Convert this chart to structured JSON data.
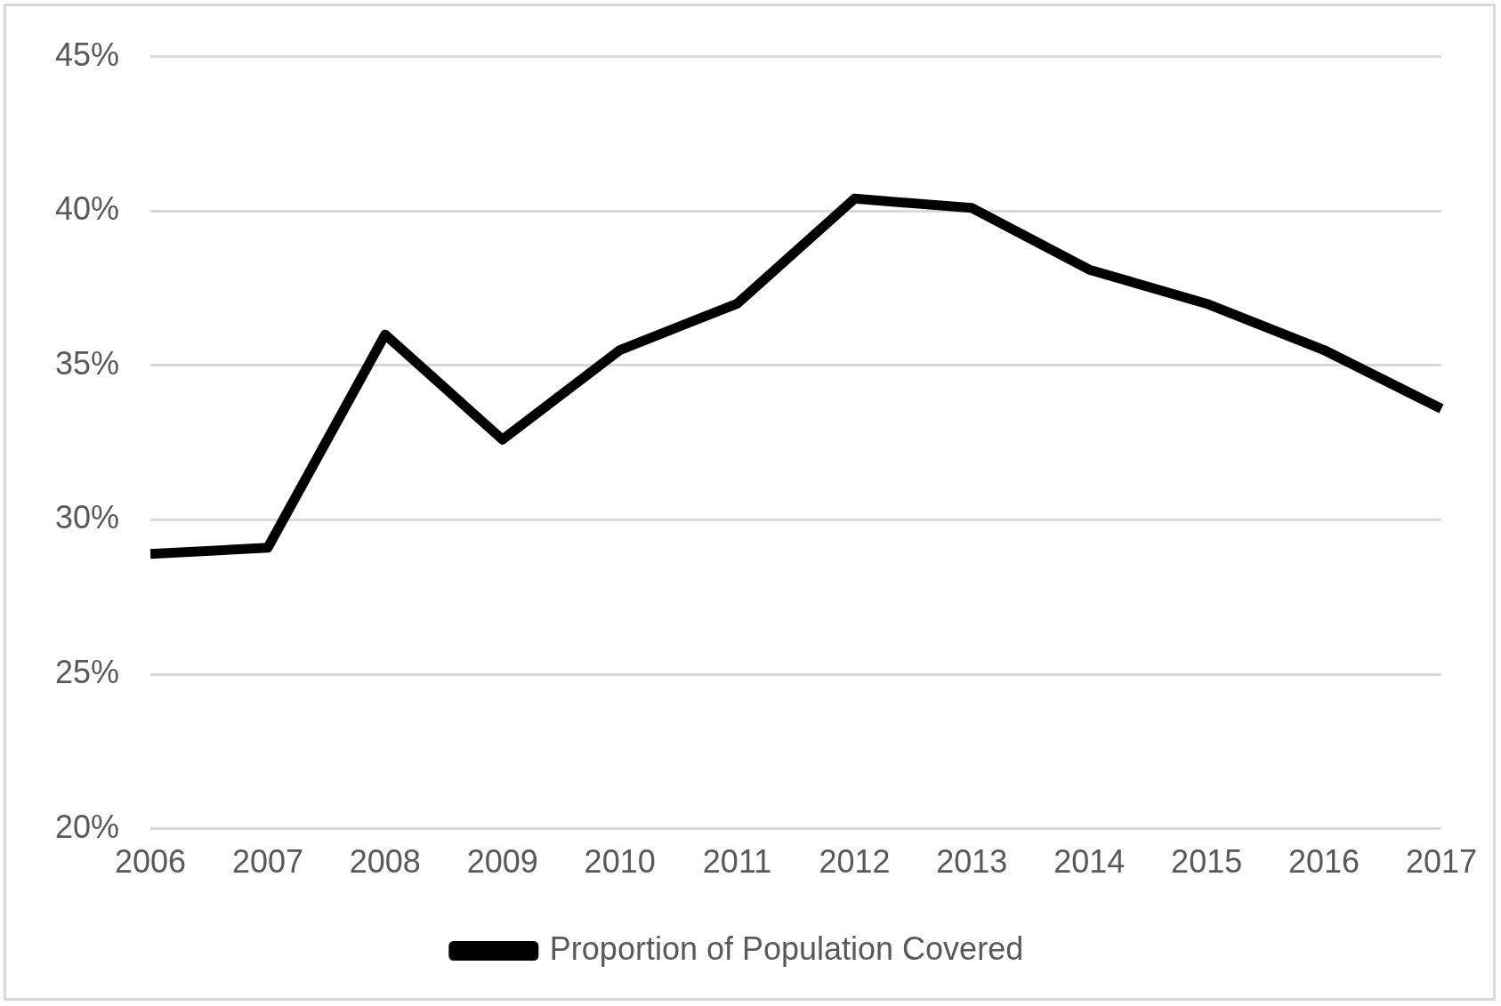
{
  "chart_data": {
    "type": "line",
    "categories": [
      "2006",
      "2007",
      "2008",
      "2009",
      "2010",
      "2011",
      "2012",
      "2013",
      "2014",
      "2015",
      "2016",
      "2017"
    ],
    "series": [
      {
        "name": "Proportion of Population Covered",
        "color": "#000000",
        "values": [
          28.9,
          29.1,
          36.0,
          32.6,
          35.5,
          37.0,
          40.4,
          40.1,
          38.1,
          37.0,
          35.5,
          33.6
        ]
      }
    ],
    "ylim": [
      20,
      45
    ],
    "yticks": [
      {
        "value": 20,
        "label": "20%"
      },
      {
        "value": 25,
        "label": "25%"
      },
      {
        "value": 30,
        "label": "30%"
      },
      {
        "value": 35,
        "label": "35%"
      },
      {
        "value": 40,
        "label": "40%"
      },
      {
        "value": 45,
        "label": "45%"
      }
    ],
    "grid": "y",
    "legend": "bottom",
    "marker": "none",
    "line_style": "solid"
  }
}
